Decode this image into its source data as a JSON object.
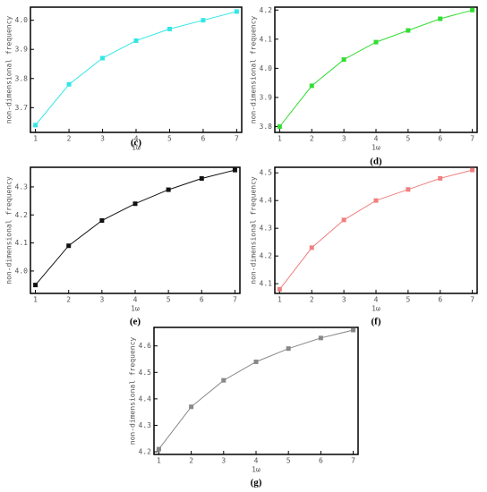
{
  "chart_data": [
    {
      "type": "line",
      "panel_label": "(c)",
      "xlabel": "1ω",
      "ylabel": "non-dimensional frequency",
      "color": "#33e6e6",
      "x": [
        1,
        2,
        3,
        4,
        5,
        6,
        7
      ],
      "values": [
        3.64,
        3.78,
        3.87,
        3.93,
        3.97,
        4.0,
        4.03
      ],
      "xlim": [
        0.85,
        7.15
      ],
      "xticks": [
        1,
        2,
        3,
        4,
        5,
        6,
        7
      ],
      "ylim": [
        3.615,
        4.045
      ],
      "yticks": [
        3.7,
        3.8,
        3.9,
        {
          "value": 4,
          "label": "4.0"
        }
      ]
    },
    {
      "type": "line",
      "panel_label": "(d)",
      "xlabel": "1ω",
      "ylabel": "non-dimensional frequency",
      "color": "#33dd33",
      "x": [
        1,
        2,
        3,
        4,
        5,
        6,
        7
      ],
      "values": [
        3.8,
        3.94,
        4.03,
        4.09,
        4.13,
        4.17,
        4.2
      ],
      "xlim": [
        0.85,
        7.15
      ],
      "xticks": [
        1,
        2,
        3,
        4,
        5,
        6,
        7
      ],
      "ylim": [
        3.78,
        4.21
      ],
      "yticks": [
        3.8,
        3.9,
        {
          "value": 4,
          "label": "4.0"
        },
        4.1,
        4.2
      ]
    },
    {
      "type": "line",
      "panel_label": "(e)",
      "xlabel": "1ω",
      "ylabel": "non-dimensional frequency",
      "color": "#111111",
      "x": [
        1,
        2,
        3,
        4,
        5,
        6,
        7
      ],
      "values": [
        3.95,
        4.09,
        4.18,
        4.24,
        4.29,
        4.33,
        4.36
      ],
      "xlim": [
        0.85,
        7.15
      ],
      "xticks": [
        1,
        2,
        3,
        4,
        5,
        6,
        7
      ],
      "ylim": [
        3.92,
        4.37
      ],
      "yticks": [
        {
          "value": 4,
          "label": "4.0"
        },
        4.1,
        4.2,
        4.3
      ]
    },
    {
      "type": "line",
      "panel_label": "(f)",
      "xlabel": "1ω",
      "ylabel": "non-dimensional frequency",
      "color": "#f08080",
      "x": [
        1,
        2,
        3,
        4,
        5,
        6,
        7
      ],
      "values": [
        4.08,
        4.23,
        4.33,
        4.4,
        4.44,
        4.48,
        4.51
      ],
      "xlim": [
        0.85,
        7.15
      ],
      "xticks": [
        1,
        2,
        3,
        4,
        5,
        6,
        7
      ],
      "ylim": [
        4.065,
        4.52
      ],
      "yticks": [
        4.1,
        4.2,
        4.3,
        4.4,
        4.5
      ]
    },
    {
      "type": "line",
      "panel_label": "(g)",
      "xlabel": "1ω",
      "ylabel": "non-dimensional frequency",
      "color": "#888888",
      "x": [
        1,
        2,
        3,
        4,
        5,
        6,
        7
      ],
      "values": [
        4.21,
        4.37,
        4.47,
        4.54,
        4.59,
        4.63,
        4.66
      ],
      "xlim": [
        0.85,
        7.15
      ],
      "xticks": [
        1,
        2,
        3,
        4,
        5,
        6,
        7
      ],
      "ylim": [
        4.19,
        4.67
      ],
      "yticks": [
        4.2,
        4.3,
        4.4,
        4.5,
        4.6
      ]
    }
  ]
}
